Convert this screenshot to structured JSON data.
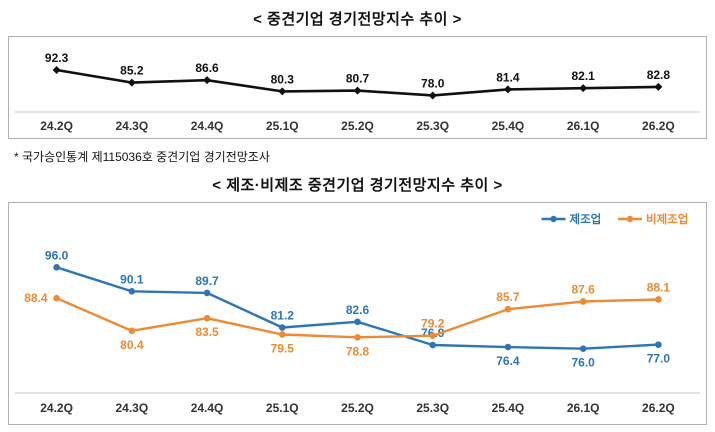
{
  "page": {
    "chart1_title": "< 중견기업 경기전망지수 추이 >",
    "footnote": "* 국가승인통계 제115036호 중견기업 경기전망조사",
    "chart2_title": "< 제조·비제조 중견기업 경기전망지수 추이 >"
  },
  "chart_data": [
    {
      "type": "line",
      "title": "중견기업 경기전망지수 추이",
      "categories": [
        "24.2Q",
        "24.3Q",
        "24.4Q",
        "25.1Q",
        "25.2Q",
        "25.3Q",
        "25.4Q",
        "26.1Q",
        "26.2Q"
      ],
      "series": [
        {
          "name": "중견기업",
          "color": "#111111",
          "marker": "diamond",
          "values": [
            92.3,
            85.2,
            86.6,
            80.3,
            80.7,
            78.0,
            81.4,
            82.1,
            82.8
          ],
          "label_pos": [
            "above",
            "above",
            "above",
            "above",
            "above",
            "above",
            "above",
            "above",
            "above"
          ]
        }
      ],
      "ylim": [
        76,
        94
      ],
      "grid": false,
      "legend": "none",
      "xlabel": "",
      "ylabel": ""
    },
    {
      "type": "line",
      "title": "제조·비제조 중견기업 경기전망지수 추이",
      "categories": [
        "24.2Q",
        "24.3Q",
        "24.4Q",
        "25.1Q",
        "25.2Q",
        "25.3Q",
        "25.4Q",
        "26.1Q",
        "26.2Q"
      ],
      "series": [
        {
          "name": "제조업",
          "color": "#2e75b6",
          "marker": "circle",
          "values": [
            96.0,
            90.1,
            89.7,
            81.2,
            82.6,
            76.9,
            76.4,
            76.0,
            77.0
          ],
          "label_pos": [
            "above",
            "above",
            "above",
            "above",
            "above",
            "above",
            "below",
            "below",
            "below"
          ]
        },
        {
          "name": "비제조업",
          "color": "#ed8a33",
          "marker": "circle",
          "values": [
            88.4,
            80.4,
            83.5,
            79.5,
            78.8,
            79.2,
            85.7,
            87.6,
            88.1
          ],
          "label_pos": [
            "left",
            "below",
            "below",
            "below",
            "below",
            "above",
            "above",
            "above",
            "above"
          ]
        }
      ],
      "ylim": [
        72,
        100
      ],
      "grid": false,
      "legend": "top-right",
      "xlabel": "",
      "ylabel": ""
    }
  ]
}
